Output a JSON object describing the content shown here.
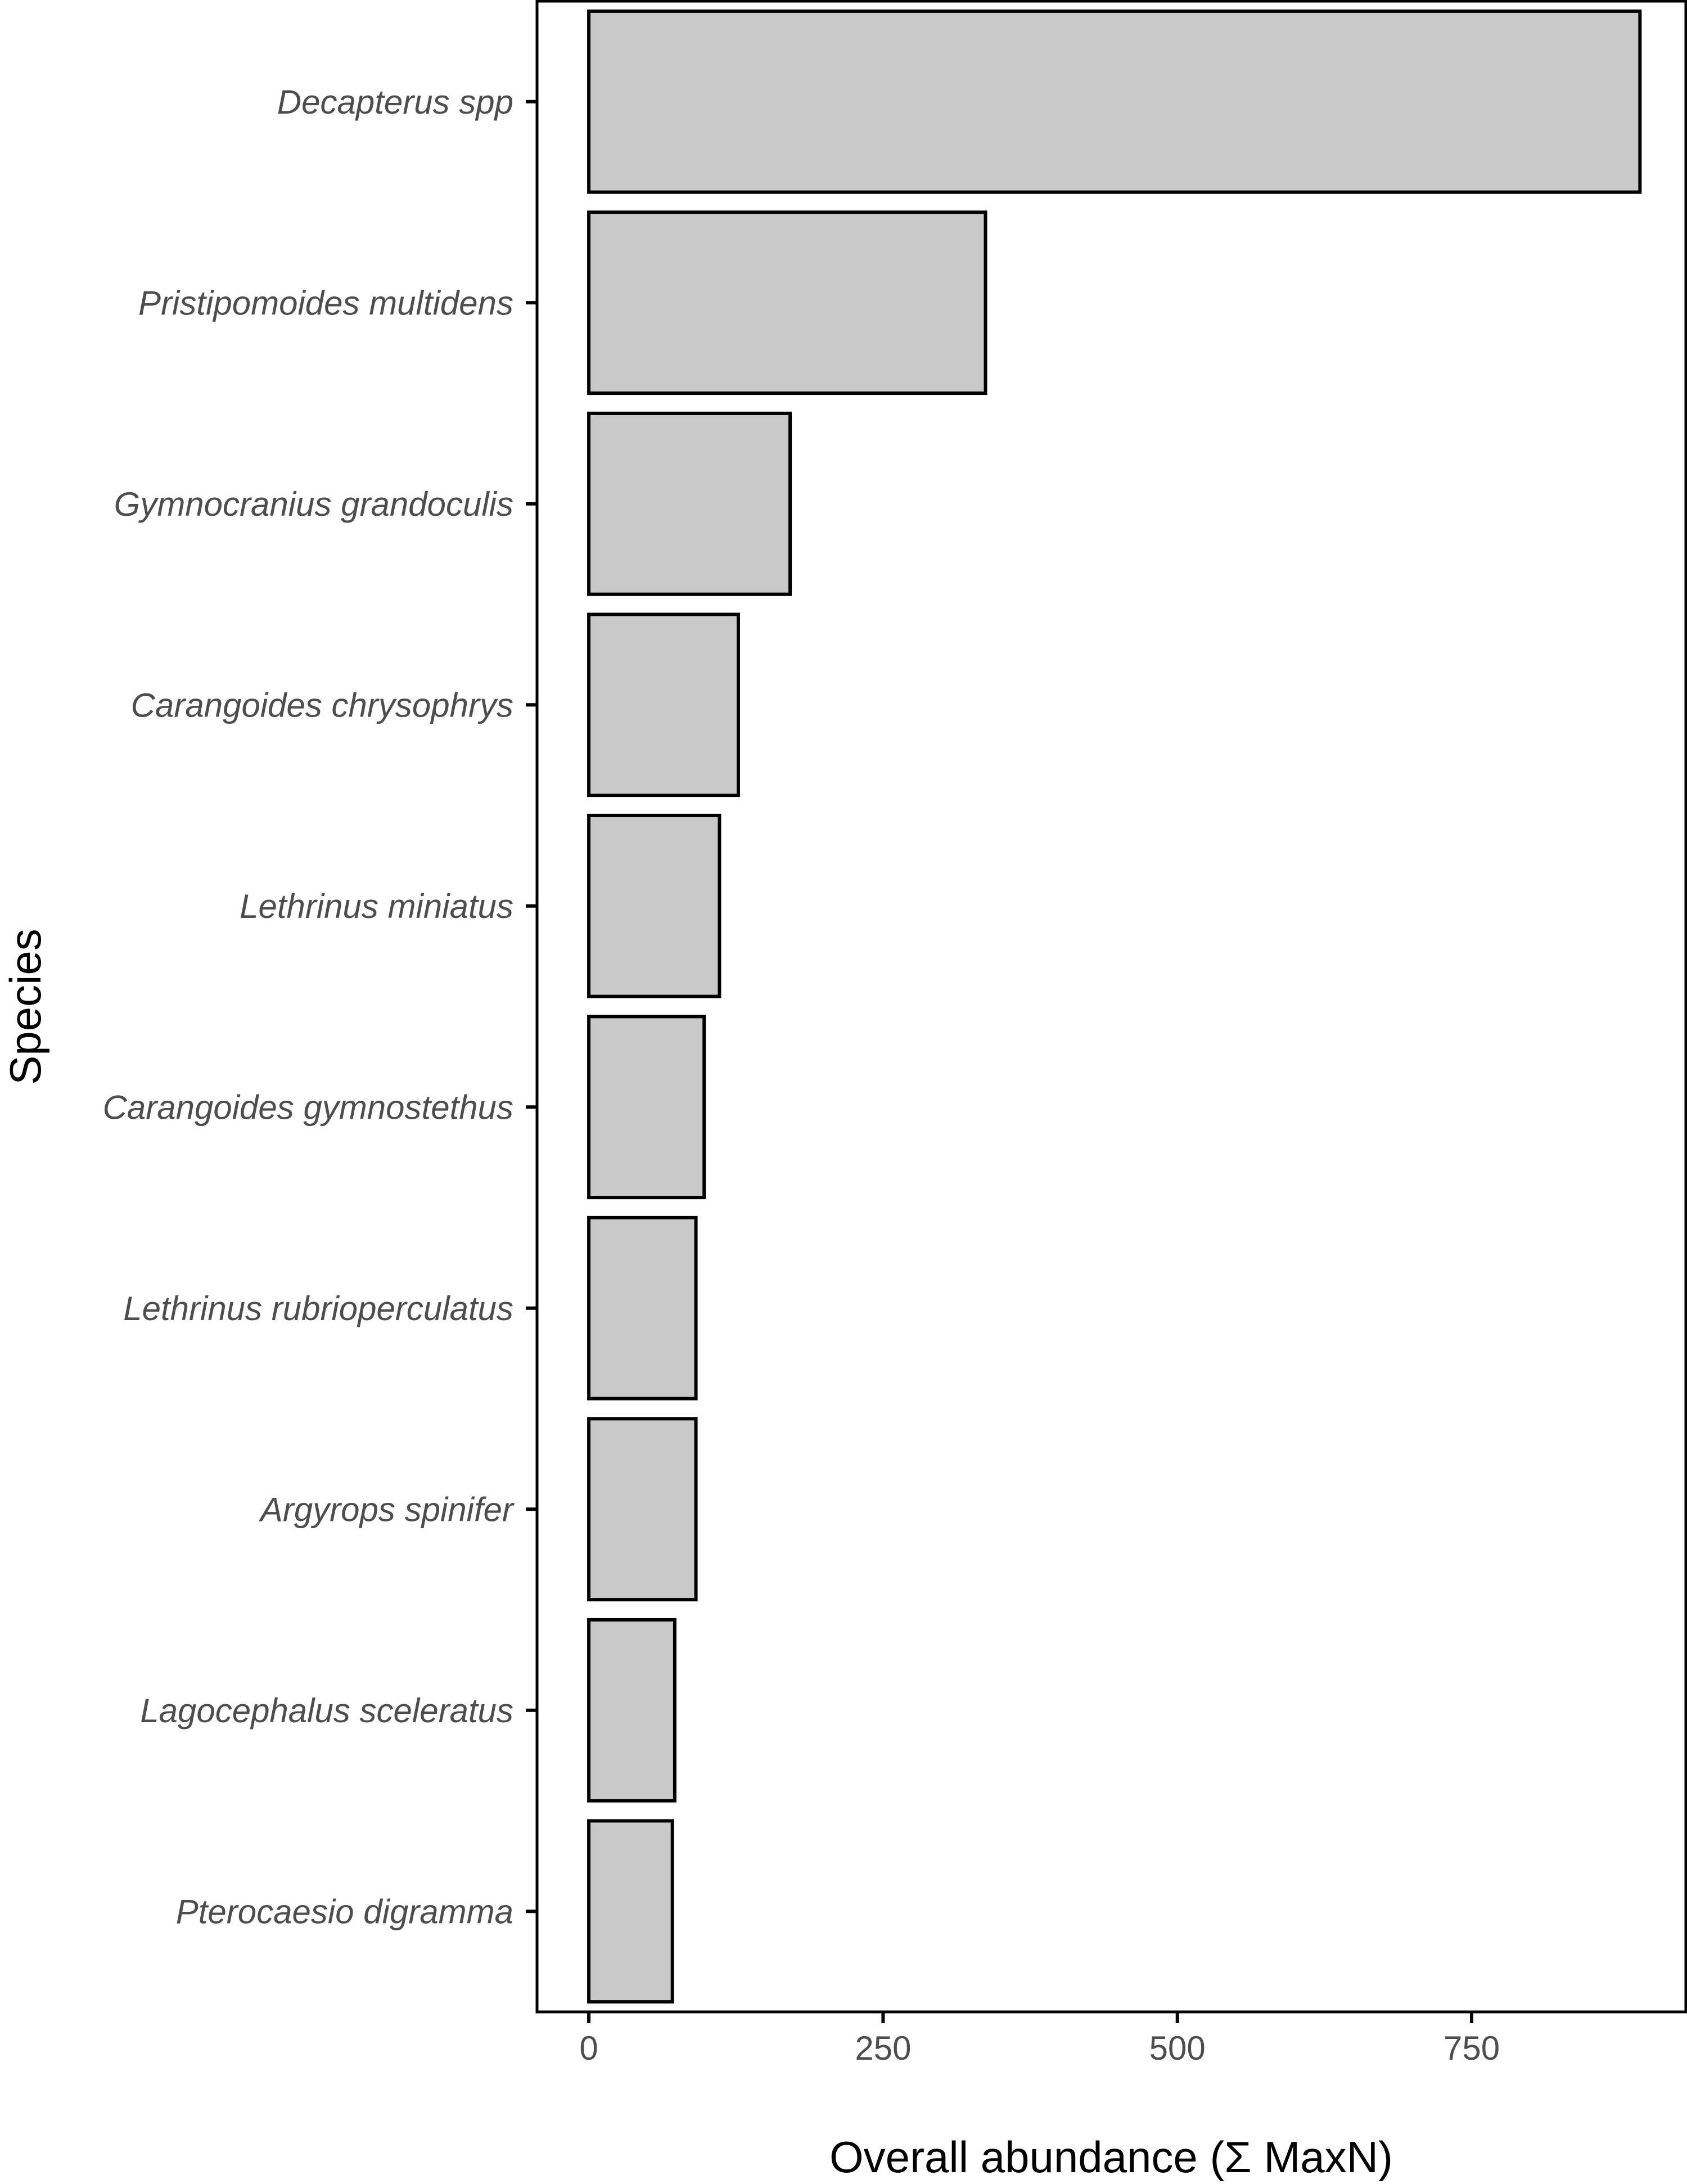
{
  "chart_data": {
    "type": "bar",
    "orientation": "horizontal",
    "categories": [
      "Decapterus spp",
      "Pristipomoides multidens",
      "Gymnocranius grandoculis",
      "Carangoides chrysophrys",
      "Lethrinus miniatus",
      "Carangoides gymnostethus",
      "Lethrinus rubrioperculatus",
      "Argyrops spinifer",
      "Lagocephalus sceleratus",
      "Pterocaesio digramma"
    ],
    "values": [
      893,
      337,
      171,
      127,
      111,
      98,
      91,
      91,
      73,
      71
    ],
    "xlabel": "Overall abundance (Σ MaxN)",
    "ylabel": "Species",
    "xlim": [
      -44,
      932
    ],
    "xticks": [
      0,
      250,
      500,
      750
    ],
    "xtick_labels": [
      "0",
      "250",
      "500",
      "750"
    ],
    "grid": false,
    "colors": {
      "bar_fill": "#c9c9c9",
      "bar_stroke": "#000000",
      "axis": "#000000",
      "tick_text": "#4d4d4d"
    }
  }
}
